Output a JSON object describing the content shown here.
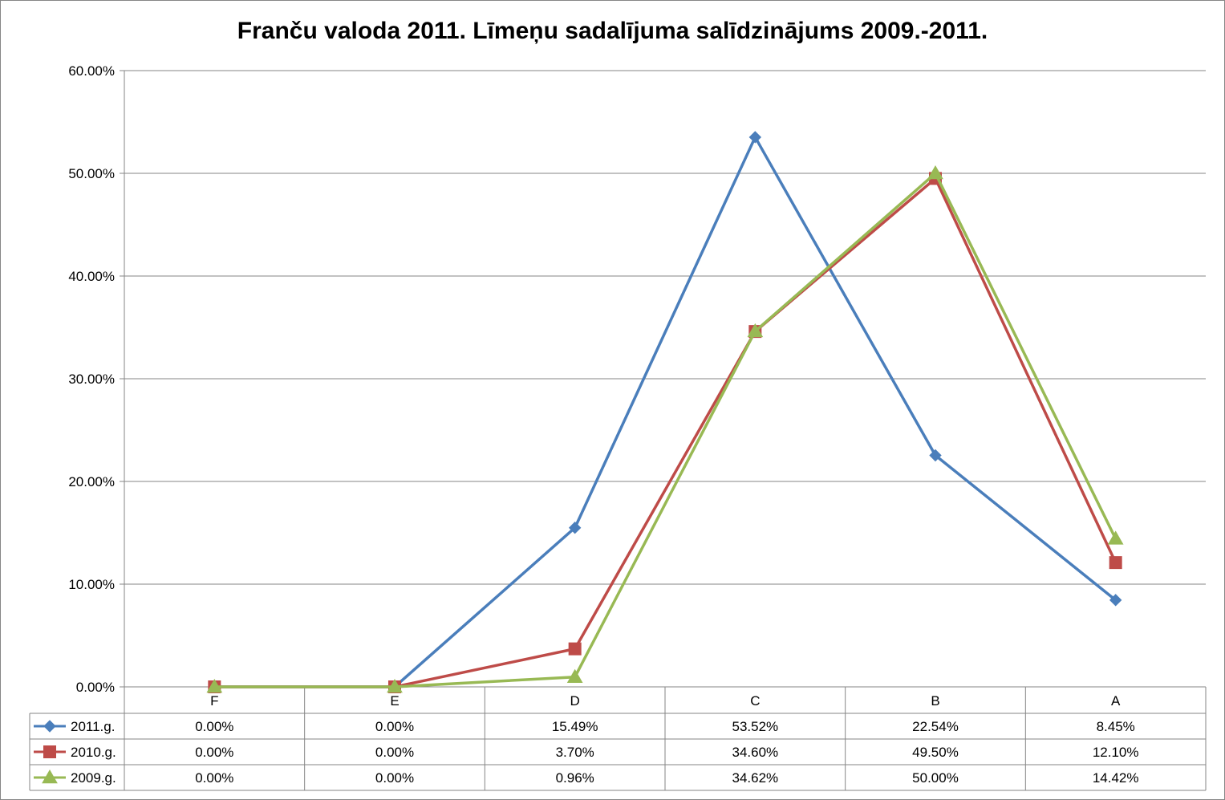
{
  "chart_data": {
    "type": "line",
    "title": "Franču valoda 2011. Līmeņu sadalījuma salīdzinājums 2009.-2011.",
    "categories": [
      "F",
      "E",
      "D",
      "C",
      "B",
      "A"
    ],
    "y_ticks": [
      "0.00%",
      "10.00%",
      "20.00%",
      "30.00%",
      "40.00%",
      "50.00%",
      "60.00%"
    ],
    "ylim": [
      0,
      60
    ],
    "grid": true,
    "legend": "data-table",
    "series": [
      {
        "name": "2011.g.",
        "color": "#4a7ebb",
        "marker": "diamond",
        "values": [
          0,
          0,
          15.49,
          53.52,
          22.54,
          8.45
        ],
        "labels": [
          "0.00%",
          "0.00%",
          "15.49%",
          "53.52%",
          "22.54%",
          "8.45%"
        ]
      },
      {
        "name": "2010.g.",
        "color": "#be4b48",
        "marker": "square",
        "values": [
          0,
          0,
          3.7,
          34.6,
          49.5,
          12.1
        ],
        "labels": [
          "0.00%",
          "0.00%",
          "3.70%",
          "34.60%",
          "49.50%",
          "12.10%"
        ]
      },
      {
        "name": "2009.g.",
        "color": "#98b954",
        "marker": "triangle",
        "values": [
          0,
          0,
          0.96,
          34.62,
          50.0,
          14.42
        ],
        "labels": [
          "0.00%",
          "0.00%",
          "0.96%",
          "34.62%",
          "50.00%",
          "14.42%"
        ]
      }
    ]
  }
}
